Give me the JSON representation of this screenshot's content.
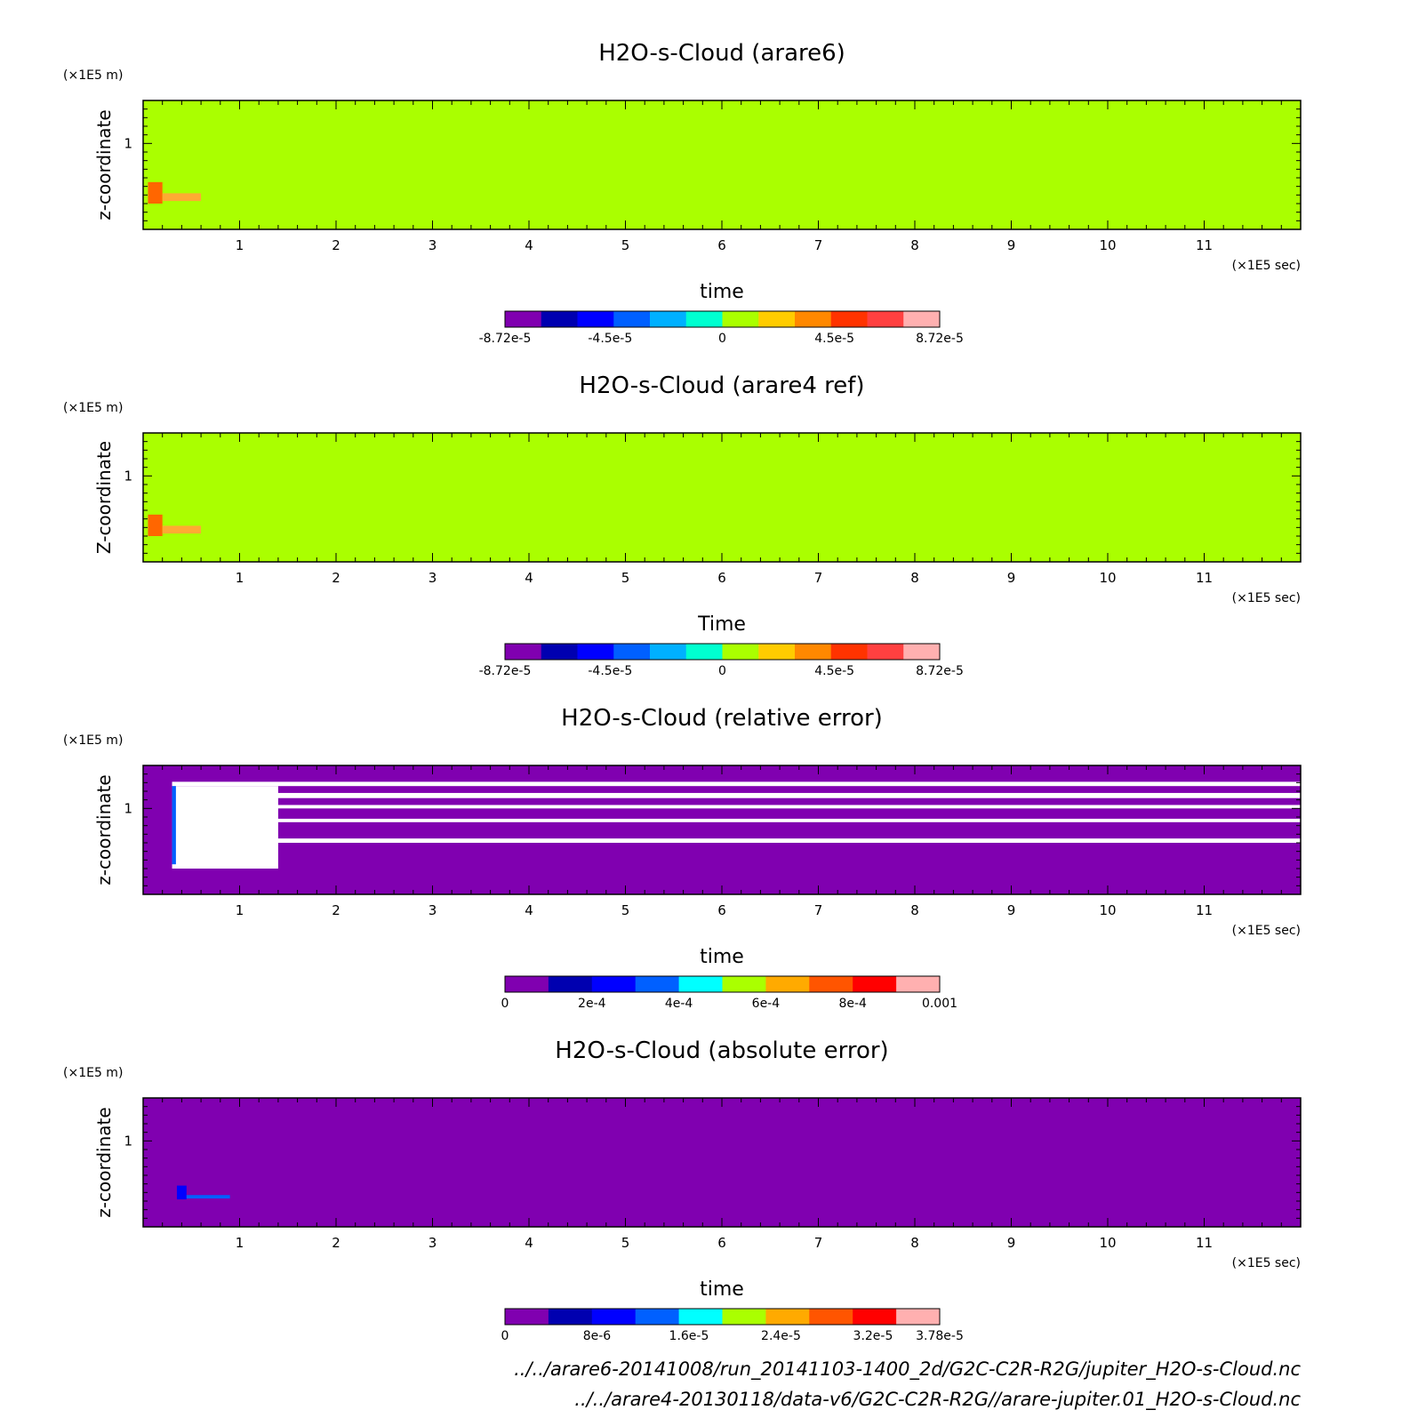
{
  "chart_data": [
    {
      "type": "heatmap",
      "title": "H2O-s-Cloud (arare6)",
      "xlabel": "time",
      "ylabel": "z-coordinate",
      "x_unit": "(×1E5 sec)",
      "y_unit": "(×1E5 m)",
      "xlim": [
        0,
        12
      ],
      "ylim": [
        0,
        1.5
      ],
      "x_ticks": [
        "1",
        "2",
        "3",
        "4",
        "5",
        "6",
        "7",
        "8",
        "9",
        "10",
        "11"
      ],
      "y_ticks": [
        "1"
      ],
      "background_color": "#aaff00",
      "features": [
        {
          "x": [
            0.05,
            0.2
          ],
          "y": [
            0.3,
            0.55
          ],
          "value": 6e-05,
          "color": "#ff6600"
        },
        {
          "x": [
            0.2,
            0.6
          ],
          "y": [
            0.33,
            0.42
          ],
          "value": 3e-05,
          "color": "#ffaa33"
        }
      ],
      "colorbar": {
        "colors": [
          "#8000b0",
          "#0000b0",
          "#0000ff",
          "#0060ff",
          "#00b0ff",
          "#00ffd0",
          "#aaff00",
          "#ffcc00",
          "#ff8800",
          "#ff3300",
          "#ff4040",
          "#ffb0b0"
        ],
        "tick_labels": [
          "-8.72e-5",
          "-4.5e-5",
          "0",
          "4.5e-5",
          "8.72e-5"
        ],
        "tick_values": [
          -8.72e-05,
          -4.5e-05,
          0,
          4.5e-05,
          8.72e-05
        ],
        "range": [
          -8.72e-05,
          8.72e-05
        ]
      }
    },
    {
      "type": "heatmap",
      "title": "H2O-s-Cloud (arare4 ref)",
      "xlabel": "Time",
      "ylabel": "Z-coordinate",
      "x_unit": "(×1E5 sec)",
      "y_unit": "(×1E5 m)",
      "xlim": [
        0,
        12
      ],
      "ylim": [
        0,
        1.5
      ],
      "x_ticks": [
        "1",
        "2",
        "3",
        "4",
        "5",
        "6",
        "7",
        "8",
        "9",
        "10",
        "11"
      ],
      "y_ticks": [
        "1"
      ],
      "background_color": "#aaff00",
      "features": [
        {
          "x": [
            0.05,
            0.2
          ],
          "y": [
            0.3,
            0.55
          ],
          "value": 6e-05,
          "color": "#ff6600"
        },
        {
          "x": [
            0.2,
            0.6
          ],
          "y": [
            0.33,
            0.42
          ],
          "value": 3e-05,
          "color": "#ffaa33"
        }
      ],
      "colorbar": {
        "colors": [
          "#8000b0",
          "#0000b0",
          "#0000ff",
          "#0060ff",
          "#00b0ff",
          "#00ffd0",
          "#aaff00",
          "#ffcc00",
          "#ff8800",
          "#ff3300",
          "#ff4040",
          "#ffb0b0"
        ],
        "tick_labels": [
          "-8.72e-5",
          "-4.5e-5",
          "0",
          "4.5e-5",
          "8.72e-5"
        ],
        "tick_values": [
          -8.72e-05,
          -4.5e-05,
          0,
          4.5e-05,
          8.72e-05
        ],
        "range": [
          -8.72e-05,
          8.72e-05
        ]
      }
    },
    {
      "type": "heatmap",
      "title": "H2O-s-Cloud (relative error)",
      "xlabel": "time",
      "ylabel": "z-coordinate",
      "x_unit": "(×1E5 sec)",
      "y_unit": "(×1E5 m)",
      "xlim": [
        0,
        12
      ],
      "ylim": [
        0,
        1.5
      ],
      "x_ticks": [
        "1",
        "2",
        "3",
        "4",
        "5",
        "6",
        "7",
        "8",
        "9",
        "10",
        "11"
      ],
      "y_ticks": [
        "1"
      ],
      "background_color": "#8000b0",
      "features": [
        {
          "x": [
            0.3,
            12
          ],
          "y": [
            1.26,
            1.31
          ],
          "value": null,
          "color": "#ffffff"
        },
        {
          "x": [
            0.3,
            12
          ],
          "y": [
            1.12,
            1.18
          ],
          "value": null,
          "color": "#ffffff"
        },
        {
          "x": [
            0.3,
            12
          ],
          "y": [
            1.0,
            1.04
          ],
          "value": null,
          "color": "#ffffff"
        },
        {
          "x": [
            0.3,
            12
          ],
          "y": [
            0.84,
            0.88
          ],
          "value": null,
          "color": "#ffffff"
        },
        {
          "x": [
            0.3,
            12
          ],
          "y": [
            0.6,
            0.65
          ],
          "value": null,
          "color": "#ffffff"
        },
        {
          "x": [
            0.3,
            1.4
          ],
          "y": [
            0.3,
            1.26
          ],
          "value": null,
          "color": "#ffffff"
        },
        {
          "x": [
            0.3,
            0.34
          ],
          "y": [
            0.35,
            1.26
          ],
          "value": 0.0002,
          "color": "#0060ff"
        }
      ],
      "colorbar": {
        "colors": [
          "#8000b0",
          "#0000b0",
          "#0000ff",
          "#0060ff",
          "#00ffff",
          "#aaff00",
          "#ffaa00",
          "#ff5500",
          "#ff0000",
          "#ffb0b0"
        ],
        "tick_labels": [
          "0",
          "2e-4",
          "4e-4",
          "6e-4",
          "8e-4",
          "0.001"
        ],
        "tick_values": [
          0,
          0.0002,
          0.0004,
          0.0006,
          0.0008,
          0.001
        ],
        "range": [
          0,
          0.001
        ]
      }
    },
    {
      "type": "heatmap",
      "title": "H2O-s-Cloud (absolute error)",
      "xlabel": "time",
      "ylabel": "z-coordinate",
      "x_unit": "(×1E5 sec)",
      "y_unit": "(×1E5 m)",
      "xlim": [
        0,
        12
      ],
      "ylim": [
        0,
        1.5
      ],
      "x_ticks": [
        "1",
        "2",
        "3",
        "4",
        "5",
        "6",
        "7",
        "8",
        "9",
        "10",
        "11"
      ],
      "y_ticks": [
        "1"
      ],
      "background_color": "#8000b0",
      "features": [
        {
          "x": [
            0.35,
            0.45
          ],
          "y": [
            0.32,
            0.48
          ],
          "value": 1.2e-05,
          "color": "#0000ff"
        },
        {
          "x": [
            0.45,
            0.9
          ],
          "y": [
            0.33,
            0.37
          ],
          "value": 8e-06,
          "color": "#0060ff"
        }
      ],
      "colorbar": {
        "colors": [
          "#8000b0",
          "#0000b0",
          "#0000ff",
          "#0060ff",
          "#00ffff",
          "#aaff00",
          "#ffaa00",
          "#ff5500",
          "#ff0000",
          "#ffb0b0"
        ],
        "tick_labels": [
          "0",
          "8e-6",
          "1.6e-5",
          "2.4e-5",
          "3.2e-5",
          "3.78e-5"
        ],
        "tick_values": [
          0,
          8e-06,
          1.6e-05,
          2.4e-05,
          3.2e-05,
          3.78e-05
        ],
        "range": [
          0,
          3.78e-05
        ]
      }
    }
  ],
  "footer": {
    "line1": "../../arare6-20141008/run_20141103-1400_2d/G2C-C2R-R2G/jupiter_H2O-s-Cloud.nc",
    "line2": "../../arare4-20130118/data-v6/G2C-C2R-R2G//arare-jupiter.01_H2O-s-Cloud.nc"
  }
}
